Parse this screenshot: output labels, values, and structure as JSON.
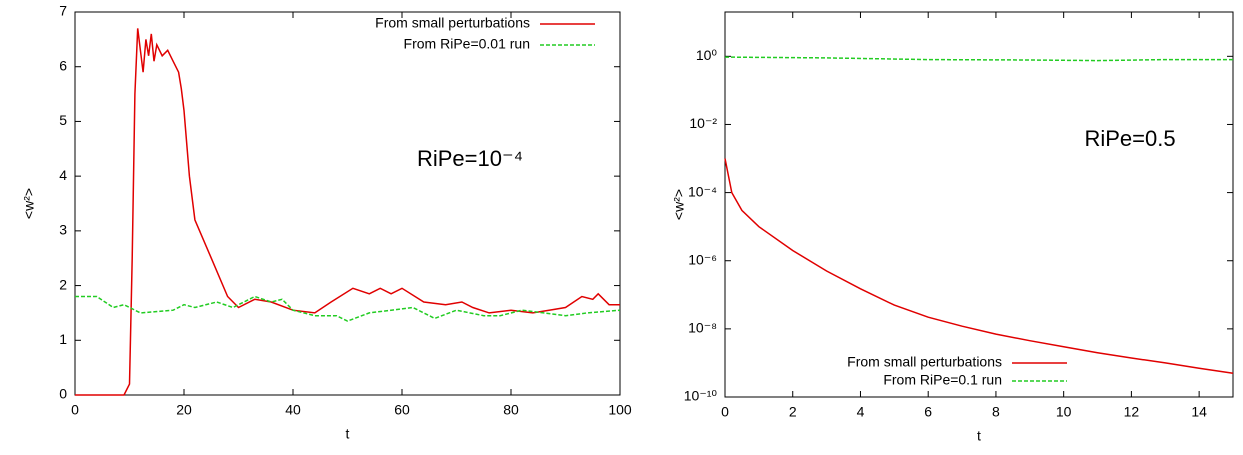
{
  "chart_data": [
    {
      "type": "line",
      "x_label": "t",
      "y_label": "<w²>",
      "annotation": "RiPe=10⁻⁴",
      "xlim": [
        0,
        100
      ],
      "xticks": [
        0,
        20,
        40,
        60,
        80,
        100
      ],
      "ylim": [
        0,
        7
      ],
      "yticks": [
        0,
        1,
        2,
        3,
        4,
        5,
        6,
        7
      ],
      "legend": "upper right",
      "series": [
        {
          "name": "From small perturbations",
          "color": "#e00000",
          "dash": "solid",
          "x": [
            0,
            9,
            10,
            10.5,
            11,
            11.5,
            12,
            12.5,
            13,
            13.5,
            14,
            14.5,
            15,
            16,
            17,
            18,
            19,
            19.5,
            20,
            21,
            22,
            25,
            28,
            30,
            33,
            36,
            40,
            44,
            47,
            51,
            54,
            56,
            58,
            60,
            64,
            68,
            71,
            73,
            76,
            80,
            84,
            87,
            90,
            93,
            95,
            96,
            98,
            100
          ],
          "values": [
            0,
            0,
            0.2,
            2.5,
            5.5,
            6.7,
            6.3,
            5.9,
            6.5,
            6.2,
            6.6,
            6.1,
            6.4,
            6.2,
            6.3,
            6.1,
            5.9,
            5.6,
            5.2,
            4.0,
            3.2,
            2.5,
            1.8,
            1.6,
            1.75,
            1.7,
            1.55,
            1.5,
            1.7,
            1.95,
            1.85,
            1.95,
            1.85,
            1.95,
            1.7,
            1.65,
            1.7,
            1.6,
            1.5,
            1.55,
            1.5,
            1.55,
            1.6,
            1.8,
            1.75,
            1.85,
            1.65,
            1.65
          ]
        },
        {
          "name": "From RiPe=0.01 run",
          "color": "#22cc22",
          "dash": "dashed",
          "x": [
            0,
            4,
            7,
            9,
            12,
            18,
            20,
            22,
            26,
            29,
            33,
            36,
            38,
            40,
            44,
            48,
            50,
            54,
            58,
            62,
            66,
            70,
            75,
            78,
            82,
            86,
            90,
            94,
            100
          ],
          "values": [
            1.8,
            1.8,
            1.6,
            1.65,
            1.5,
            1.55,
            1.65,
            1.6,
            1.7,
            1.6,
            1.8,
            1.7,
            1.75,
            1.55,
            1.45,
            1.45,
            1.35,
            1.5,
            1.55,
            1.6,
            1.4,
            1.55,
            1.45,
            1.45,
            1.55,
            1.5,
            1.45,
            1.5,
            1.55
          ]
        }
      ]
    },
    {
      "type": "line",
      "x_label": "t",
      "y_label": "<w²>",
      "annotation": "RiPe=0.5",
      "xlim": [
        0,
        15
      ],
      "xticks": [
        0,
        2,
        4,
        6,
        8,
        10,
        12,
        14
      ],
      "ylim": [
        1e-10,
        20
      ],
      "log_y": true,
      "yticks": [
        {
          "value": 1e-10,
          "label": "10⁻¹⁰"
        },
        {
          "value": 1e-08,
          "label": "10⁻⁸"
        },
        {
          "value": 1e-06,
          "label": "10⁻⁶"
        },
        {
          "value": 0.0001,
          "label": "10⁻⁴"
        },
        {
          "value": 0.01,
          "label": "10⁻²"
        },
        {
          "value": 1,
          "label": "10⁰"
        }
      ],
      "legend": "lower center",
      "series": [
        {
          "name": "From small perturbations",
          "color": "#e00000",
          "dash": "solid",
          "x": [
            0,
            0.2,
            0.5,
            1,
            2,
            3,
            4,
            5,
            6,
            7,
            8,
            9,
            10,
            11,
            12,
            13,
            14,
            15
          ],
          "values": [
            0.001,
            0.0001,
            3e-05,
            1e-05,
            2e-06,
            5e-07,
            1.5e-07,
            5e-08,
            2.2e-08,
            1.2e-08,
            7e-09,
            4.5e-09,
            3e-09,
            2e-09,
            1.4e-09,
            1e-09,
            7e-10,
            5e-10
          ]
        },
        {
          "name": "From RiPe=0.1 run",
          "color": "#22cc22",
          "dash": "dashed",
          "x": [
            0,
            3,
            6,
            9,
            11,
            13,
            15
          ],
          "values": [
            0.95,
            0.9,
            0.8,
            0.78,
            0.75,
            0.8,
            0.8
          ]
        }
      ]
    }
  ]
}
